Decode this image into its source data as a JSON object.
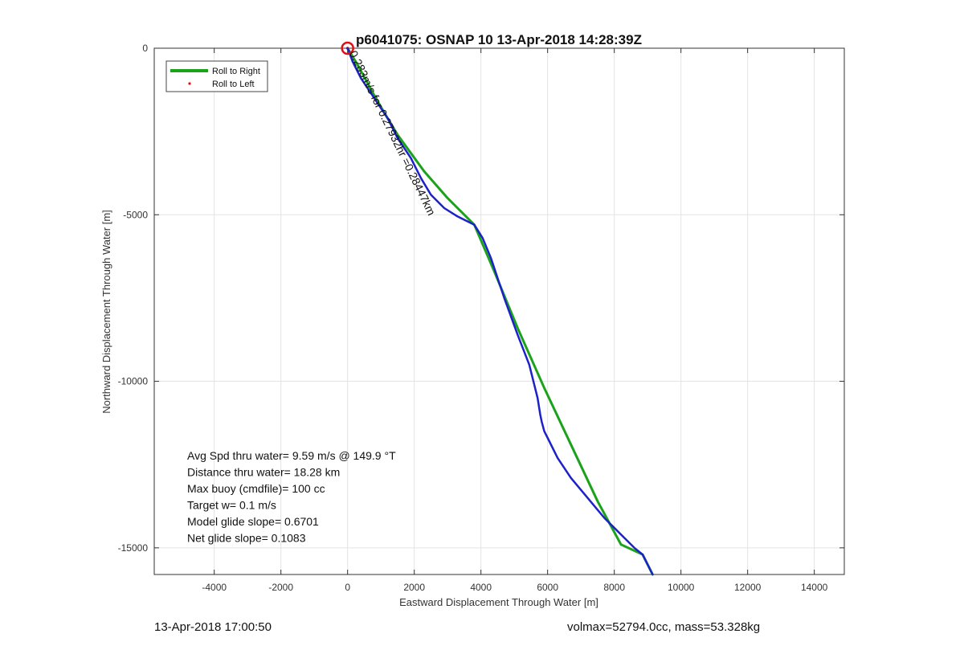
{
  "chart_data": {
    "type": "line",
    "title": "p6041075: OSNAP 10 13-Apr-2018 14:28:39Z",
    "xlabel": "Eastward Displacement Through Water [m]",
    "ylabel": "Northward Displacement Through Water [m]",
    "xlim": [
      -5800,
      14900
    ],
    "ylim": [
      -15800,
      0
    ],
    "xticks": [
      -4000,
      -2000,
      0,
      2000,
      4000,
      6000,
      8000,
      10000,
      12000,
      14000
    ],
    "yticks": [
      0,
      -5000,
      -10000,
      -15000
    ],
    "grid": true,
    "legend": {
      "placement": "top-left",
      "entries": [
        "Roll to Right",
        "Roll to Left"
      ]
    },
    "series": [
      {
        "name": "Roll to Right",
        "color": "#1aa31a",
        "x": [
          0,
          300,
          900,
          1500,
          2300,
          3000,
          3800,
          4400,
          5100,
          5900,
          6700,
          7500,
          8200,
          8850,
          9150
        ],
        "y": [
          0,
          -500,
          -1600,
          -2600,
          -3700,
          -4500,
          -5300,
          -6700,
          -8400,
          -10200,
          -11900,
          -13600,
          -14900,
          -15200,
          -15800
        ]
      },
      {
        "name": "Roll to Left",
        "color": "#e01010",
        "x": [
          0
        ],
        "y": [
          0
        ]
      },
      {
        "name": "",
        "color": "#1c22c8",
        "x": [
          0,
          150,
          400,
          800,
          1200,
          1500,
          1900,
          2200,
          2500,
          2900,
          3300,
          3800,
          4050,
          4300,
          4700,
          5100,
          5450,
          5700,
          5780,
          5820,
          5900,
          6000,
          6300,
          6700,
          7200,
          7700,
          8200,
          8600,
          8850,
          9150
        ],
        "y": [
          0,
          -400,
          -900,
          -1500,
          -2100,
          -2700,
          -3300,
          -3900,
          -4400,
          -4800,
          -5050,
          -5300,
          -5700,
          -6300,
          -7500,
          -8600,
          -9500,
          -10500,
          -11000,
          -11200,
          -11500,
          -11700,
          -12300,
          -12900,
          -13500,
          -14100,
          -14600,
          -15000,
          -15200,
          -15800
        ]
      }
    ],
    "marker": {
      "x": 0,
      "y": 0,
      "color": "#e01010"
    },
    "annotation_rotated": {
      "text": "0.283m/s for 0.27932hr =0.28447km",
      "x": 0,
      "y": 0,
      "angle": 64
    },
    "stats_text": [
      "Avg Spd thru water=  9.59 m/s @ 149.9 °T",
      "Distance thru water= 18.28 km",
      "Max buoy (cmdfile)= 100 cc",
      "Target w= 0.1 m/s",
      "Model glide slope= 0.6701",
      "Net glide slope= 0.1083"
    ]
  },
  "footer": {
    "left": "13-Apr-2018 17:00:50",
    "right": "volmax=52794.0cc, mass=53.328kg"
  }
}
